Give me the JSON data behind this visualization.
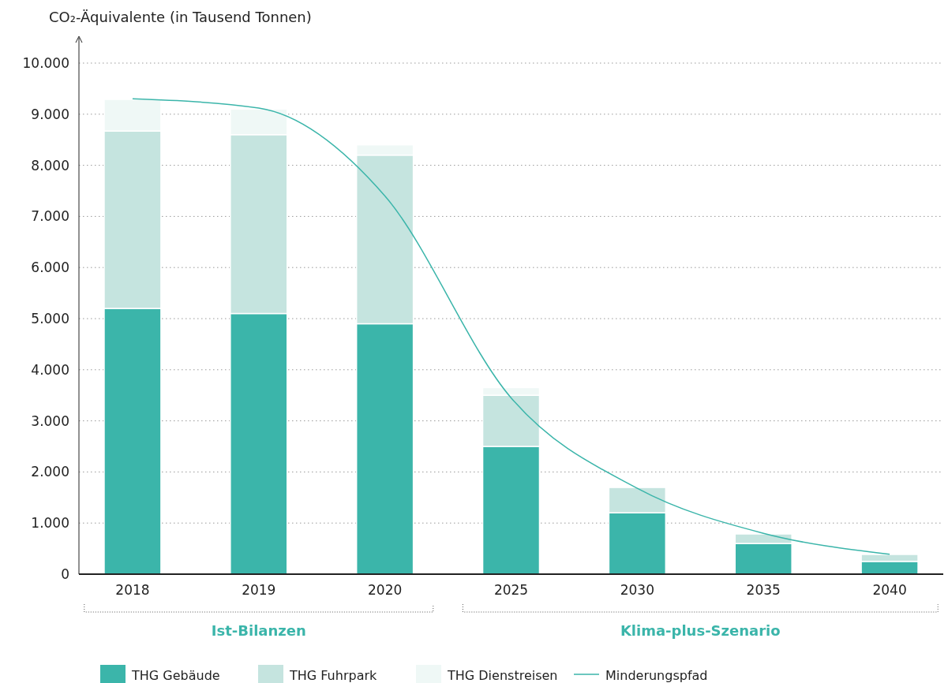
{
  "chart_data": {
    "type": "bar",
    "stacked": true,
    "ylabel": "CO₂-Äquivalente (in Tausend Tonnen)",
    "categories": [
      "2018",
      "2019",
      "2020",
      "2025",
      "2030",
      "2035",
      "2040"
    ],
    "series": [
      {
        "name": "THG Gebäude",
        "color": "#3bb5aa",
        "values": [
          5200,
          5100,
          4900,
          2500,
          1200,
          600,
          250
        ]
      },
      {
        "name": "THG Fuhrpark",
        "color": "#c5e4df",
        "values": [
          3470,
          3500,
          3300,
          1000,
          500,
          190,
          140
        ]
      },
      {
        "name": "THG Dienstreisen",
        "color": "#eff8f6",
        "values": [
          620,
          500,
          200,
          150,
          20,
          20,
          10
        ]
      },
      {
        "name": "Minderungspfad",
        "type": "line",
        "color": "#3bb5aa",
        "values": [
          9300,
          9120,
          7400,
          3450,
          1680,
          800,
          390
        ]
      }
    ],
    "ylim": [
      0,
      10000
    ],
    "yticks": [
      0,
      {
        "value": 1000,
        "label": "1.000"
      },
      {
        "value": 2000,
        "label": "2.000"
      },
      {
        "value": 3000,
        "label": "3.000"
      },
      {
        "value": 4000,
        "label": "4.000"
      },
      {
        "value": 5000,
        "label": "5.000"
      },
      {
        "value": 6000,
        "label": "6.000"
      },
      {
        "value": 7000,
        "label": "7.000"
      },
      {
        "value": 8000,
        "label": "8.000"
      },
      {
        "value": 9000,
        "label": "9.000"
      },
      {
        "value": 10000,
        "label": "10.000"
      }
    ],
    "grid": "y",
    "legend": "bottom",
    "marker": "none",
    "line_style": "solid",
    "annotations": [
      "Ist-Bilanzen",
      "Klima-plus-Szenario"
    ]
  }
}
